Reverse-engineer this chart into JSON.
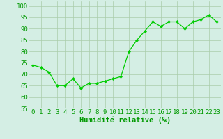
{
  "x": [
    0,
    1,
    2,
    3,
    4,
    5,
    6,
    7,
    8,
    9,
    10,
    11,
    12,
    13,
    14,
    15,
    16,
    17,
    18,
    19,
    20,
    21,
    22,
    23
  ],
  "y": [
    74,
    73,
    71,
    65,
    65,
    68,
    64,
    66,
    66,
    67,
    68,
    69,
    80,
    85,
    89,
    93,
    91,
    93,
    93,
    90,
    93,
    94,
    96,
    93
  ],
  "line_color": "#00cc00",
  "marker_color": "#00cc00",
  "bg_color": "#d4eee4",
  "grid_color": "#aaccaa",
  "xlabel": "Humidité relative (%)",
  "xlabel_color": "#009900",
  "tick_color": "#009900",
  "ylim": [
    55,
    102
  ],
  "yticks": [
    55,
    60,
    65,
    70,
    75,
    80,
    85,
    90,
    95,
    100
  ],
  "xlim": [
    -0.5,
    23.5
  ],
  "xlabel_fontsize": 7.5,
  "tick_fontsize": 6.5
}
